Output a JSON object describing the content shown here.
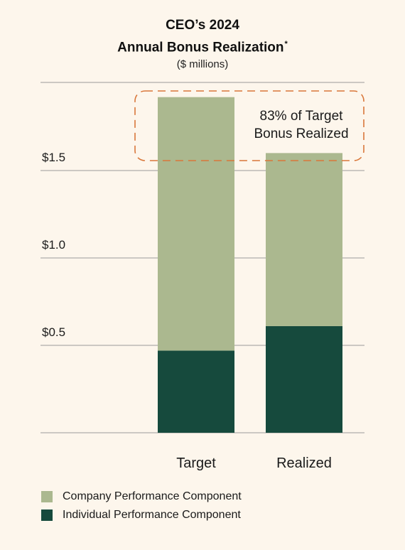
{
  "colors": {
    "background": "#fdf6ec",
    "company": "#abb88f",
    "individual": "#164a3d",
    "gridline": "#9a9a9a",
    "callout": "#d9773a",
    "text": "#1a1a1a"
  },
  "chart_data": {
    "type": "bar",
    "stacked": true,
    "title": "CEO’s 2024",
    "title_line2": "Annual Bonus Realization",
    "title_marker": "*",
    "subtitle": "($ millions)",
    "categories": [
      "Target",
      "Realized"
    ],
    "series": [
      {
        "name": "Individual Performance Component",
        "color": "#164a3d",
        "values": [
          0.47,
          0.61
        ]
      },
      {
        "name": "Company Performance Component",
        "color": "#abb88f",
        "values": [
          1.45,
          0.99
        ]
      }
    ],
    "y_ticks": [
      {
        "value": 0.5,
        "label": "$0.5"
      },
      {
        "value": 1.0,
        "label": "$1.0"
      },
      {
        "value": 1.5,
        "label": "$1.5"
      }
    ],
    "ylim": [
      0,
      2.0
    ],
    "grid": true,
    "legend_position": "bottom-left",
    "annotation": {
      "line1": "83% of Target",
      "line2": "Bonus Realized"
    }
  }
}
